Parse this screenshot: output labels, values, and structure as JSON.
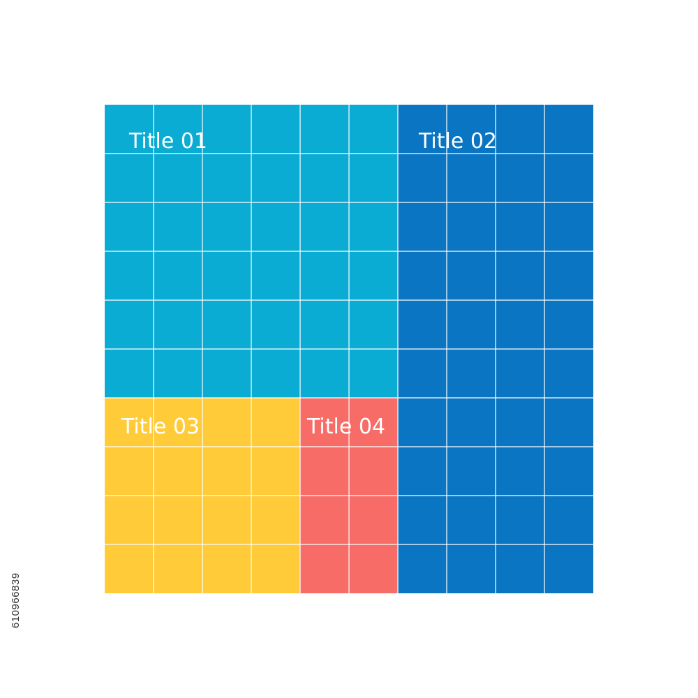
{
  "chart_data": {
    "type": "treemap",
    "grid_units": [
      10,
      10
    ],
    "tiles": [
      {
        "label": "Title 01",
        "value": 36,
        "color": "#0BACD4"
      },
      {
        "label": "Title 02",
        "value": 40,
        "color": "#0A75C2"
      },
      {
        "label": "Title 03",
        "value": 16,
        "color": "#FFCB38"
      },
      {
        "label": "Title 04",
        "value": 8,
        "color": "#F86C68"
      }
    ]
  },
  "stock_id": "610966839",
  "colors": {
    "background": "#ffffff",
    "grid": "#ffffff",
    "label": "#ffffff"
  }
}
